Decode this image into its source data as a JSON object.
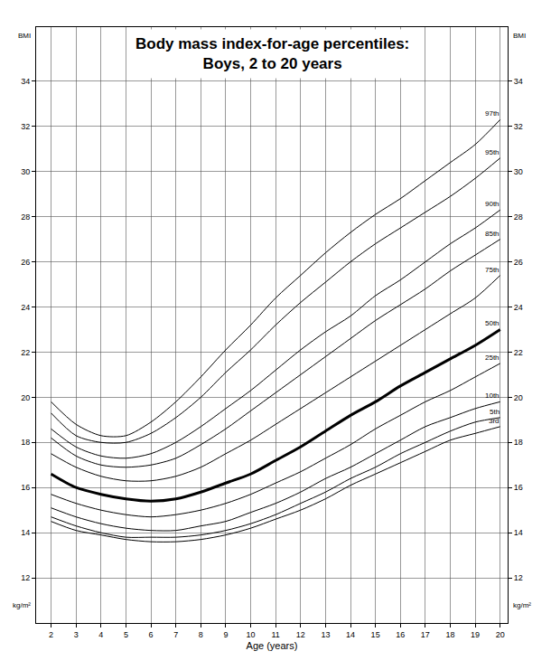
{
  "chart_data": {
    "type": "line",
    "title": "Body mass index-for-age percentiles:\nBoys, 2 to 20 years",
    "xlabel": "Age (years)",
    "ylabel": "BMI",
    "yunits": "kg/m²",
    "x": [
      2,
      3,
      4,
      5,
      6,
      7,
      8,
      9,
      10,
      11,
      12,
      13,
      14,
      15,
      16,
      17,
      18,
      19,
      20
    ],
    "series": [
      {
        "name": "97th",
        "color": "#000000",
        "line_style": "solid",
        "values": [
          19.8,
          18.8,
          18.3,
          18.3,
          18.9,
          19.8,
          20.9,
          22.1,
          23.2,
          24.4,
          25.4,
          26.4,
          27.3,
          28.1,
          28.8,
          29.6,
          30.4,
          31.2,
          32.3
        ]
      },
      {
        "name": "95th",
        "color": "#000000",
        "line_style": "solid",
        "values": [
          19.3,
          18.3,
          18.0,
          18.0,
          18.4,
          19.1,
          20.0,
          21.1,
          22.1,
          23.2,
          24.2,
          25.1,
          26.0,
          26.8,
          27.5,
          28.2,
          28.9,
          29.7,
          30.6
        ]
      },
      {
        "name": "90th",
        "color": "#000000",
        "line_style": "solid",
        "values": [
          18.6,
          17.8,
          17.4,
          17.3,
          17.5,
          18.0,
          18.7,
          19.5,
          20.3,
          21.2,
          22.1,
          22.9,
          23.6,
          24.5,
          25.2,
          26.0,
          26.8,
          27.5,
          28.3
        ]
      },
      {
        "name": "85th",
        "color": "#000000",
        "line_style": "solid",
        "values": [
          18.2,
          17.4,
          17.0,
          16.9,
          17.0,
          17.3,
          17.9,
          18.6,
          19.4,
          20.2,
          21.0,
          21.8,
          22.6,
          23.4,
          24.1,
          24.8,
          25.6,
          26.3,
          27.0
        ]
      },
      {
        "name": "75th",
        "color": "#000000",
        "line_style": "solid",
        "values": [
          17.5,
          16.9,
          16.5,
          16.3,
          16.3,
          16.5,
          16.9,
          17.5,
          18.1,
          18.8,
          19.5,
          20.2,
          20.9,
          21.6,
          22.3,
          23.0,
          23.7,
          24.4,
          25.4
        ]
      },
      {
        "name": "50th",
        "color": "#000000",
        "line_style": "thick",
        "values": [
          16.6,
          16.0,
          15.7,
          15.5,
          15.4,
          15.5,
          15.8,
          16.2,
          16.6,
          17.2,
          17.8,
          18.5,
          19.2,
          19.8,
          20.5,
          21.1,
          21.7,
          22.3,
          23.0
        ]
      },
      {
        "name": "25th",
        "color": "#000000",
        "line_style": "solid",
        "values": [
          15.7,
          15.3,
          15.0,
          14.8,
          14.7,
          14.8,
          15.0,
          15.3,
          15.7,
          16.2,
          16.7,
          17.3,
          17.9,
          18.6,
          19.2,
          19.8,
          20.3,
          20.9,
          21.5
        ]
      },
      {
        "name": "10th",
        "color": "#000000",
        "line_style": "solid",
        "values": [
          15.1,
          14.7,
          14.4,
          14.2,
          14.1,
          14.1,
          14.3,
          14.5,
          14.9,
          15.3,
          15.8,
          16.4,
          16.9,
          17.5,
          18.1,
          18.7,
          19.1,
          19.5,
          19.8
        ]
      },
      {
        "name": "5th",
        "color": "#000000",
        "line_style": "solid",
        "values": [
          14.7,
          14.3,
          14.0,
          13.8,
          13.8,
          13.8,
          13.9,
          14.1,
          14.4,
          14.8,
          15.3,
          15.8,
          16.4,
          16.9,
          17.5,
          18.0,
          18.5,
          18.9,
          19.1
        ]
      },
      {
        "name": "3rd",
        "color": "#000000",
        "line_style": "solid",
        "values": [
          14.5,
          14.1,
          13.9,
          13.7,
          13.6,
          13.6,
          13.7,
          13.9,
          14.2,
          14.6,
          15.0,
          15.5,
          16.1,
          16.6,
          17.1,
          17.6,
          18.1,
          18.4,
          18.7
        ]
      }
    ],
    "xlim": [
      1.4,
      20.3
    ],
    "xticks": [
      2,
      3,
      4,
      5,
      6,
      7,
      8,
      9,
      10,
      11,
      12,
      13,
      14,
      15,
      16,
      17,
      18,
      19,
      20
    ],
    "ylim": [
      10,
      36.4
    ],
    "yticks": [
      12,
      14,
      16,
      18,
      20,
      22,
      24,
      26,
      28,
      30,
      32,
      34
    ],
    "grid": true
  }
}
